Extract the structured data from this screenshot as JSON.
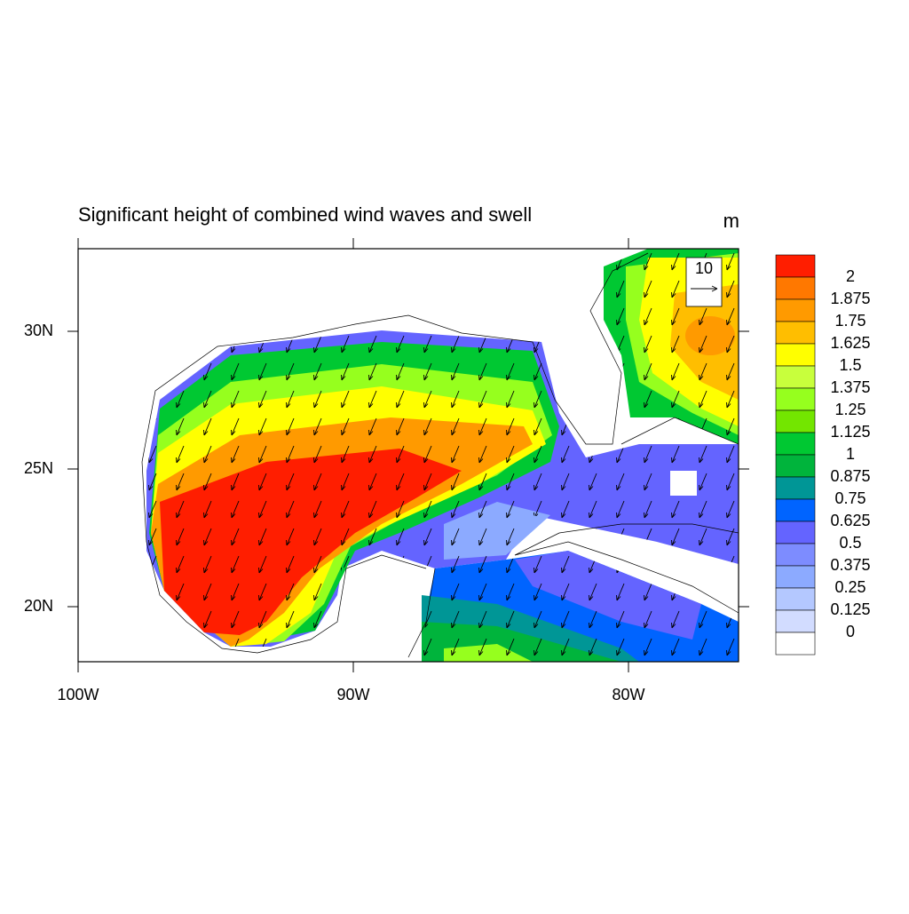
{
  "chart_data": {
    "type": "contour_map",
    "title": "Significant height of combined wind waves and swell",
    "units": "m",
    "xlim": [
      -100,
      -76
    ],
    "ylim": [
      18,
      33
    ],
    "xticks": [
      {
        "value": -100,
        "label": "100W"
      },
      {
        "value": -90,
        "label": "90W"
      },
      {
        "value": -80,
        "label": "80W"
      }
    ],
    "yticks": [
      {
        "value": 20,
        "label": "20N"
      },
      {
        "value": 25,
        "label": "25N"
      },
      {
        "value": 30,
        "label": "30N"
      }
    ],
    "levels": [
      2,
      1.875,
      1.75,
      1.625,
      1.5,
      1.375,
      1.25,
      1.125,
      1,
      0.875,
      0.75,
      0.625,
      0.5,
      0.375,
      0.25,
      0.125,
      0
    ],
    "colors": [
      "#ff1e00",
      "#ff7800",
      "#ff9a00",
      "#ffbe00",
      "#ffff00",
      "#c8ff3c",
      "#96ff1e",
      "#73e600",
      "#00c832",
      "#00b43c",
      "#009696",
      "#0064ff",
      "#6464ff",
      "#7d8cff",
      "#8caaff",
      "#b4c8ff",
      "#d2dcff",
      "#ffffff"
    ],
    "reference_vector": 10
  }
}
